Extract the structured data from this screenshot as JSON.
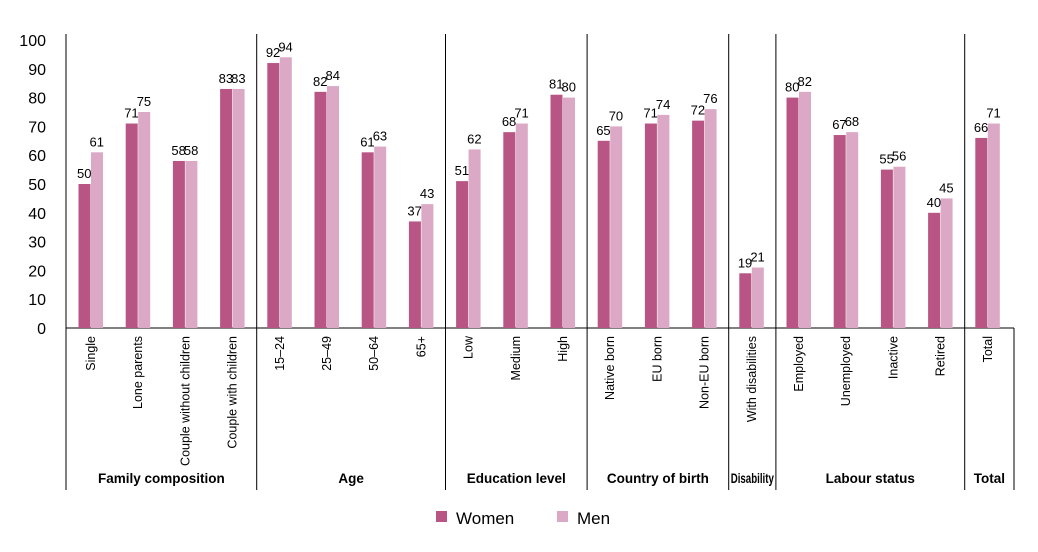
{
  "chart_data": {
    "type": "bar",
    "ylim": [
      0,
      100
    ],
    "yticks": [
      0,
      10,
      20,
      30,
      40,
      50,
      60,
      70,
      80,
      90,
      100
    ],
    "grid": false,
    "legend_position": "bottom-center",
    "colors": {
      "Women": "#b85585",
      "Men": "#dba9c5"
    },
    "categories": [
      "Single",
      "Lone parents",
      "Couple without children",
      "Couple with children",
      "15–24",
      "25–49",
      "50–64",
      "65+",
      "Low",
      "Medium",
      "High",
      "Native born",
      "EU born",
      "Non-EU born",
      "With disabilities",
      "Employed",
      "Unemployed",
      "Inactive",
      "Retired",
      "Total"
    ],
    "groups": [
      {
        "label": "Family composition",
        "count": 4
      },
      {
        "label": "Age",
        "count": 4
      },
      {
        "label": "Education level",
        "count": 3
      },
      {
        "label": "Country of birth",
        "count": 3
      },
      {
        "label": "Disability",
        "count": 1
      },
      {
        "label": "Labour status",
        "count": 4
      },
      {
        "label": "Total",
        "count": 1
      }
    ],
    "series": [
      {
        "name": "Women",
        "values": [
          50,
          71,
          58,
          83,
          92,
          82,
          61,
          37,
          51,
          68,
          81,
          65,
          71,
          72,
          19,
          80,
          67,
          55,
          40,
          66
        ]
      },
      {
        "name": "Men",
        "values": [
          61,
          75,
          58,
          83,
          94,
          84,
          63,
          43,
          62,
          71,
          80,
          70,
          74,
          76,
          21,
          82,
          68,
          56,
          45,
          71
        ]
      }
    ]
  }
}
